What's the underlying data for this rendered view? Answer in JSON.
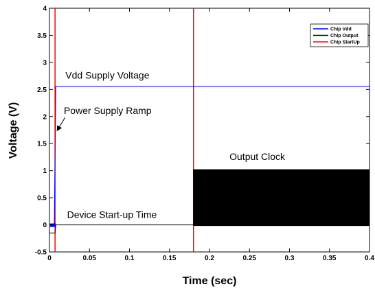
{
  "chart_data": {
    "type": "line",
    "title": "",
    "xlabel": "Time (sec)",
    "ylabel": "Voltage (V)",
    "xlim": [
      0,
      0.4
    ],
    "ylim": [
      -0.5,
      4
    ],
    "x_ticks": [
      "0",
      "0.05",
      "0.1",
      "0.15",
      "0.2",
      "0.25",
      "0.3",
      "0.35",
      "0.4"
    ],
    "y_ticks": [
      "-0.5",
      "0",
      "0.5",
      "1",
      "1.5",
      "2",
      "2.5",
      "3",
      "3.5",
      "4"
    ],
    "grid": false,
    "legend_position": "top-right",
    "series": [
      {
        "name": "Chip Vdd",
        "color": "#0000ff",
        "points": [
          [
            0,
            0
          ],
          [
            0.006,
            0
          ],
          [
            0.008,
            2.56
          ],
          [
            0.4,
            2.56
          ]
        ]
      },
      {
        "name": "Chip Output",
        "color": "#000000",
        "points": [
          [
            0,
            -0.15
          ],
          [
            0.007,
            -0.15
          ],
          [
            0.008,
            0
          ],
          [
            0.18,
            0
          ],
          [
            0.18,
            1.02
          ],
          [
            0.4,
            1.02
          ]
        ],
        "oscillation": {
          "x_start": 0.18,
          "x_end": 0.4,
          "low": -0.02,
          "high": 1.02
        }
      },
      {
        "name": "Chip StartUp",
        "color": "#ff0000",
        "vertical_lines_x": [
          0.007,
          0.18
        ]
      }
    ],
    "annotations": [
      {
        "text": "Vdd Supply Voltage",
        "x": 0.02,
        "y": 2.7
      },
      {
        "text": "Power Supply Ramp",
        "x": 0.018,
        "y": 2.05
      },
      {
        "text": "Output Clock",
        "x": 0.225,
        "y": 1.2
      },
      {
        "text": "Device Start-up Time",
        "x": 0.022,
        "y": 0.13
      }
    ]
  }
}
